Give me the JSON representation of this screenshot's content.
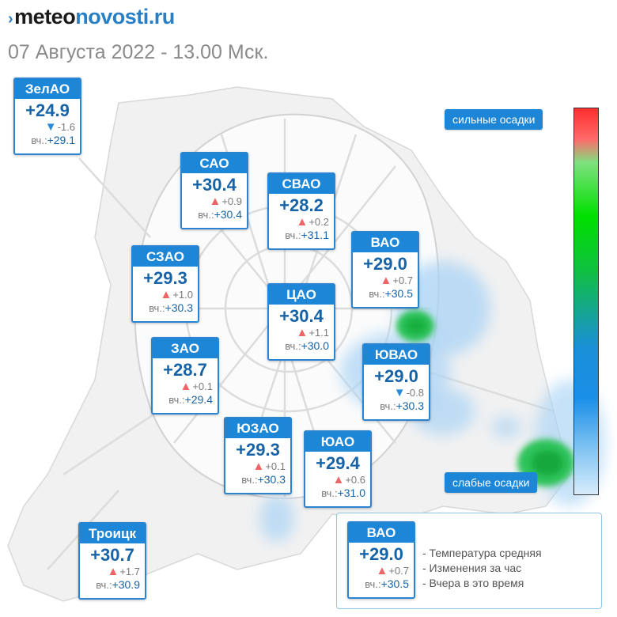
{
  "header": {
    "logo_mark": "›",
    "logo_part1": "meteo",
    "logo_part2": "novosti.ru",
    "subtitle": "07 Августа 2022 - 13.00 Мск."
  },
  "colors": {
    "card_header": "#1e86d6",
    "temp_text": "#1763a7",
    "up_arrow": "#ef6464",
    "down_arrow": "#2b8ad9"
  },
  "districts": [
    {
      "name": "ЗелАО",
      "temp": "+24.9",
      "dir": "down",
      "delta": "-1.6",
      "yest_label": "вч.:",
      "yest": "+29.1"
    },
    {
      "name": "САО",
      "temp": "+30.4",
      "dir": "up",
      "delta": "+0.9",
      "yest_label": "вч.:",
      "yest": "+30.4"
    },
    {
      "name": "СВАО",
      "temp": "+28.2",
      "dir": "up",
      "delta": "+0.2",
      "yest_label": "вч.:",
      "yest": "+31.1"
    },
    {
      "name": "ВАО",
      "temp": "+29.0",
      "dir": "up",
      "delta": "+0.7",
      "yest_label": "вч.:",
      "yest": "+30.5"
    },
    {
      "name": "СЗАО",
      "temp": "+29.3",
      "dir": "up",
      "delta": "+1.0",
      "yest_label": "вч.:",
      "yest": "+30.3"
    },
    {
      "name": "ЦАО",
      "temp": "+30.4",
      "dir": "up",
      "delta": "+1.1",
      "yest_label": "вч.:",
      "yest": "+30.0"
    },
    {
      "name": "ЗАО",
      "temp": "+28.7",
      "dir": "up",
      "delta": "+0.1",
      "yest_label": "вч.:",
      "yest": "+29.4"
    },
    {
      "name": "ЮВАО",
      "temp": "+29.0",
      "dir": "down",
      "delta": "-0.8",
      "yest_label": "вч.:",
      "yest": "+30.3"
    },
    {
      "name": "ЮЗАО",
      "temp": "+29.3",
      "dir": "up",
      "delta": "+0.1",
      "yest_label": "вч.:",
      "yest": "+30.3"
    },
    {
      "name": "ЮАО",
      "temp": "+29.4",
      "dir": "up",
      "delta": "+0.6",
      "yest_label": "вч.:",
      "yest": "+31.0"
    },
    {
      "name": "Троицк",
      "temp": "+30.7",
      "dir": "up",
      "delta": "+1.7",
      "yest_label": "вч.:",
      "yest": "+30.9"
    }
  ],
  "scale": {
    "high_label": "сильные осадки",
    "low_label": "слабые осадки"
  },
  "legend": {
    "sample": {
      "name": "ВАО",
      "temp": "+29.0",
      "dir": "up",
      "delta": "+0.7",
      "yest_label": "вч.:",
      "yest": "+30.5"
    },
    "line1": "- Температура средняя",
    "line2": "- Изменения за час",
    "line3": "- Вчера в это время"
  }
}
